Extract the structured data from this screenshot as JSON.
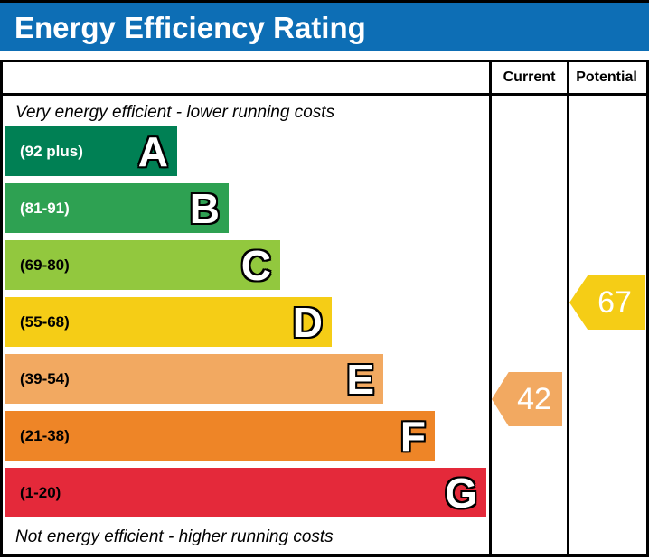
{
  "title": "Energy Efficiency Rating",
  "columns": {
    "current": "Current",
    "potential": "Potential"
  },
  "notes": {
    "top": "Very energy efficient - lower running costs",
    "bottom": "Not energy efficient - higher running costs"
  },
  "bands": [
    {
      "letter": "A",
      "range": "(92 plus)",
      "color": "#008054",
      "text_color": "#ffffff"
    },
    {
      "letter": "B",
      "range": "(81-91)",
      "color": "#2ea152",
      "text_color": "#ffffff"
    },
    {
      "letter": "C",
      "range": "(69-80)",
      "color": "#92c83e",
      "text_color": "#000000"
    },
    {
      "letter": "D",
      "range": "(55-68)",
      "color": "#f5cd16",
      "text_color": "#000000"
    },
    {
      "letter": "E",
      "range": "(39-54)",
      "color": "#f2a961",
      "text_color": "#000000"
    },
    {
      "letter": "F",
      "range": "(21-38)",
      "color": "#ee8527",
      "text_color": "#000000"
    },
    {
      "letter": "G",
      "range": "(1-20)",
      "color": "#e4293a",
      "text_color": "#000000"
    }
  ],
  "ratings": {
    "current": {
      "value": "42",
      "band": "E",
      "color": "#f2a961"
    },
    "potential": {
      "value": "67",
      "band": "D",
      "color": "#f5cd16"
    }
  },
  "accent_colors": {
    "banner_blue": "#0d6eb5",
    "border_black": "#000000"
  },
  "chart_data": {
    "type": "bar",
    "title": "Energy Efficiency Rating",
    "categories": [
      "A",
      "B",
      "C",
      "D",
      "E",
      "F",
      "G"
    ],
    "band_ranges": [
      "92 plus",
      "81-91",
      "69-80",
      "55-68",
      "39-54",
      "21-38",
      "1-20"
    ],
    "band_colors": [
      "#008054",
      "#2ea152",
      "#92c83e",
      "#f5cd16",
      "#f2a961",
      "#ee8527",
      "#e4293a"
    ],
    "bar_lengths_relative": [
      1.0,
      1.3,
      1.6,
      1.9,
      2.2,
      2.5,
      2.8
    ],
    "columns": [
      "Current",
      "Potential"
    ],
    "current": 42,
    "current_band": "E",
    "potential": 67,
    "potential_band": "D",
    "scale_min": 1,
    "scale_max": 100,
    "legend_position": "none",
    "grid": false,
    "notes": [
      "Very energy efficient - lower running costs",
      "Not energy efficient - higher running costs"
    ]
  }
}
